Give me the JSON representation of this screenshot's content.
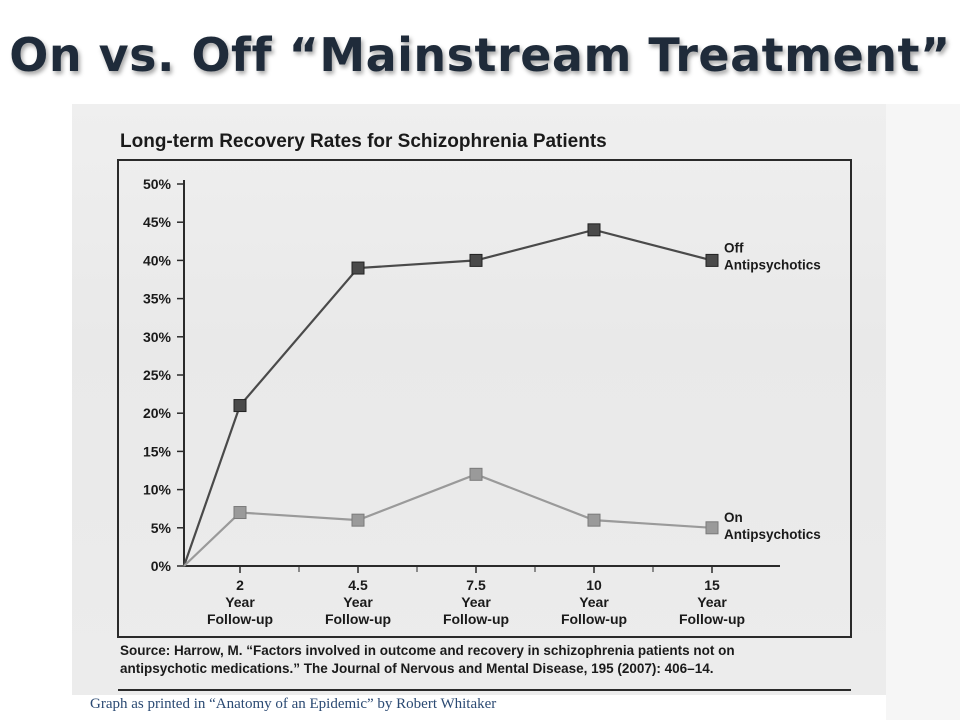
{
  "slide": {
    "title": "On vs. Off “Mainstream Treatment”",
    "caption": "Graph as printed in “Anatomy of an Epidemic” by Robert Whitaker"
  },
  "chart_data": {
    "type": "line",
    "title": "Long-term Recovery Rates for Schizophrenia Patients",
    "x": [
      0,
      2,
      4.5,
      7.5,
      10,
      15
    ],
    "categories": [
      "Year\nFollow-up"
    ],
    "x_tick_labels": [
      {
        "num": "2",
        "line2": "Year",
        "line3": "Follow-up"
      },
      {
        "num": "4.5",
        "line2": "Year",
        "line3": "Follow-up"
      },
      {
        "num": "7.5",
        "line2": "Year",
        "line3": "Follow-up"
      },
      {
        "num": "10",
        "line2": "Year",
        "line3": "Follow-up"
      },
      {
        "num": "15",
        "line2": "Year",
        "line3": "Follow-up"
      }
    ],
    "y_tick_labels": [
      "0%",
      "5%",
      "10%",
      "15%",
      "20%",
      "25%",
      "30%",
      "35%",
      "40%",
      "45%",
      "50%"
    ],
    "ylim": [
      0,
      50
    ],
    "series": [
      {
        "name": "Off Antipsychotics",
        "label_lines": [
          "Off",
          "Antipsychotics"
        ],
        "color": "#4a4a4a",
        "values": [
          0,
          21,
          39,
          40,
          44,
          40
        ]
      },
      {
        "name": "On Antipsychotics",
        "label_lines": [
          "On",
          "Antipsychotics"
        ],
        "color": "#9a9a9a",
        "values": [
          0,
          7,
          6,
          12,
          6,
          5
        ]
      }
    ],
    "source_lines": [
      "Source: Harrow, M. “Factors involved in outcome and recovery in schizophrenia patients not on",
      "antipsychotic medications.” The Journal of Nervous and Mental Disease, 195 (2007): 406–14."
    ],
    "grid": false
  }
}
